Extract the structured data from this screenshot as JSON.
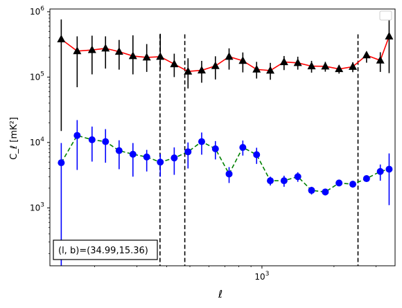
{
  "chart_data": {
    "type": "scatter",
    "xlabel": "ℓ",
    "ylabel": "C_ℓ  [mK²]",
    "xscale": "log",
    "yscale": "log",
    "xlim": [
      130,
      3600
    ],
    "ylim": [
      130,
      1100000
    ],
    "x_tick_label": "10^3",
    "y_tick_labels": [
      "10^3",
      "10^4",
      "10^5",
      "10^6"
    ],
    "annotation": "(l, b)=(34.99,15.36)",
    "legend": {
      "placement": "top-right",
      "entries": []
    },
    "grid": false,
    "vlines": [
      375,
      476,
      2520
    ],
    "series": [
      {
        "style": "red solid line, black triangle markers",
        "line_color": "#ff0000",
        "marker_color": "#000000",
        "marker": "triangle",
        "x": [
          145,
          169,
          195,
          222,
          253,
          289,
          330,
          376,
          430,
          491,
          560,
          639,
          729,
          832,
          950,
          1084,
          1237,
          1412,
          1612,
          1840,
          2100,
          2397,
          2736,
          3123,
          3400
        ],
        "y": [
          380000,
          250000,
          260000,
          275000,
          245000,
          210000,
          200000,
          205000,
          158000,
          122000,
          127000,
          148000,
          205000,
          178000,
          131000,
          126000,
          170000,
          165000,
          147000,
          146000,
          133000,
          144000,
          216000,
          180000,
          420000
        ],
        "err_low": [
          365000,
          180000,
          150000,
          140000,
          115000,
          100000,
          80000,
          75000,
          58000,
          55000,
          45000,
          56000,
          75000,
          60000,
          36000,
          35000,
          42000,
          35000,
          30000,
          25000,
          20000,
          25000,
          50000,
          60000,
          305000
        ],
        "err_high": [
          380000,
          170000,
          170000,
          145000,
          125000,
          225000,
          120000,
          255000,
          70000,
          72000,
          50000,
          60000,
          70000,
          60000,
          40000,
          39000,
          40000,
          40000,
          30000,
          25000,
          20000,
          25000,
          25000,
          60000,
          380000
        ]
      },
      {
        "style": "green dashed line, blue circle markers",
        "line_color": "#008000",
        "marker_color": "#0000ff",
        "marker": "circle",
        "x": [
          145,
          169,
          195,
          222,
          253,
          289,
          330,
          376,
          430,
          491,
          560,
          639,
          729,
          832,
          950,
          1084,
          1237,
          1412,
          1612,
          1840,
          2100,
          2397,
          2736,
          3123,
          3400
        ],
        "y": [
          4900,
          12800,
          11000,
          10300,
          7500,
          6600,
          6000,
          5000,
          5800,
          7200,
          10300,
          8000,
          3300,
          8400,
          6500,
          2600,
          2600,
          3000,
          1850,
          1750,
          2400,
          2300,
          2800,
          3600,
          3900
        ],
        "err_low": [
          4850,
          9000,
          5900,
          5400,
          3600,
          3600,
          2400,
          2000,
          2600,
          3200,
          3800,
          2500,
          900,
          2100,
          1800,
          400,
          500,
          500,
          250,
          200,
          250,
          250,
          300,
          1000,
          2800
        ],
        "err_high": [
          4900,
          9200,
          6500,
          5700,
          3300,
          3200,
          1700,
          1700,
          2600,
          2800,
          3900,
          2500,
          900,
          2300,
          1800,
          400,
          500,
          500,
          250,
          200,
          250,
          250,
          300,
          1000,
          2900
        ]
      }
    ]
  }
}
